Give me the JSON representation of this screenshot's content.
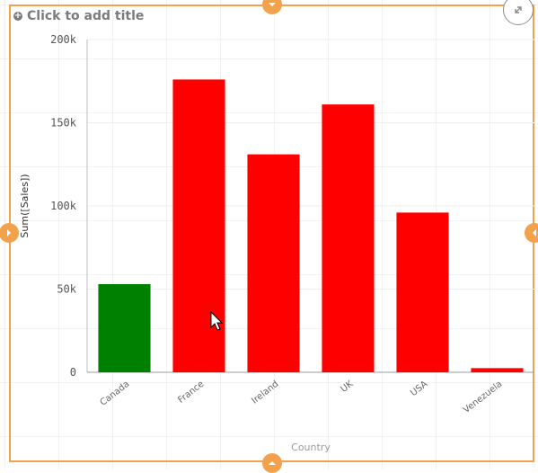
{
  "header": {
    "title_placeholder": "Click to add title",
    "add_icon": "plus-circle-icon",
    "expand_icon": "expand-arrows-icon"
  },
  "colors": {
    "frame": "#f2a24d",
    "bar_default": "#ff0000",
    "bar_highlight": "#008000"
  },
  "chart_data": {
    "type": "bar",
    "categories": [
      "Canada",
      "France",
      "Ireland",
      "UK",
      "USA",
      "Venezuela"
    ],
    "values": [
      53000,
      176000,
      131000,
      161000,
      96000,
      2500
    ],
    "bar_colors": [
      "#008000",
      "#ff0000",
      "#ff0000",
      "#ff0000",
      "#ff0000",
      "#ff0000"
    ],
    "xlabel": "Country",
    "ylabel": "Sum([Sales])",
    "ylim": [
      0,
      200000
    ],
    "y_ticks": [
      0,
      50000,
      100000,
      150000,
      200000
    ],
    "y_tick_labels": [
      "0",
      "50k",
      "100k",
      "150k",
      "200k"
    ],
    "grid": true
  }
}
